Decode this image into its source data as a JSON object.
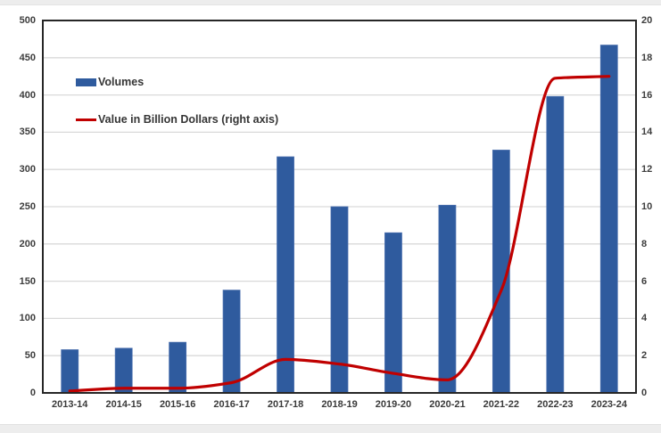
{
  "colors": {
    "bar": "#2f5b9e",
    "line": "#c00000",
    "grid": "#d9d9d9",
    "plot_border": "#262626",
    "axis_text": "#3d3d3d",
    "page_strip": "#ededed"
  },
  "legend": {
    "items": [
      {
        "label": "Volumes",
        "swatch": "bar"
      },
      {
        "label": "Value in Billion Dollars (right axis)",
        "swatch": "line"
      }
    ]
  },
  "chart_data": {
    "type": "combo-bar-line",
    "title": "",
    "xlabel": "",
    "ylabel_left": "",
    "ylabel_right": "",
    "grid": true,
    "legend_position": "top-left inside plot area",
    "categories": [
      "2013-14",
      "2014-15",
      "2015-16",
      "2016-17",
      "2017-18",
      "2018-19",
      "2019-20",
      "2020-21",
      "2021-22",
      "2022-23",
      "2023-24"
    ],
    "series": [
      {
        "name": "Volumes",
        "type": "bar",
        "axis": "left",
        "color": "#2f5b9e",
        "values": [
          58,
          60,
          68,
          138,
          317,
          250,
          215,
          252,
          326,
          398,
          467
        ]
      },
      {
        "name": "Value in Billion Dollars (right axis)",
        "type": "line",
        "axis": "right",
        "color": "#c00000",
        "values": [
          0.1,
          0.25,
          0.25,
          0.55,
          1.8,
          1.55,
          1.05,
          0.7,
          5.5,
          16.9,
          17.0
        ]
      }
    ],
    "left_axis": {
      "min": 0,
      "max": 500,
      "step": 50,
      "ticks": [
        0,
        50,
        100,
        150,
        200,
        250,
        300,
        350,
        400,
        450,
        500
      ],
      "tick_labels": [
        "0",
        "50",
        "100",
        "150",
        "200",
        "250",
        "300",
        "350",
        "400",
        "450",
        "500"
      ]
    },
    "right_axis": {
      "min": 0,
      "max": 20,
      "step": 2,
      "ticks": [
        0,
        2,
        4,
        6,
        8,
        10,
        12,
        14,
        16,
        18,
        20
      ],
      "tick_labels": [
        "0",
        "2",
        "4",
        "6",
        "8",
        "10",
        "12",
        "14",
        "16",
        "18",
        "20"
      ]
    }
  }
}
